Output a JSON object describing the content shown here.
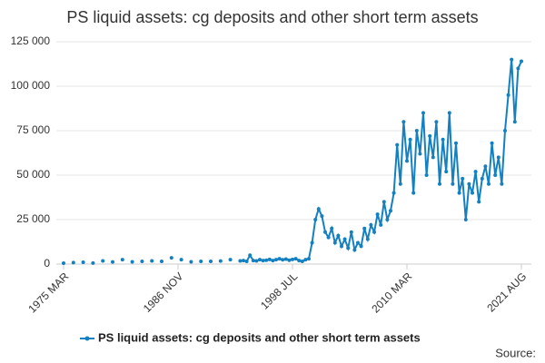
{
  "chart_data": {
    "type": "line",
    "title": "PS liquid assets: cg deposits and other short term assets",
    "source": "Source:",
    "categories": [
      "1975 MAR",
      null,
      null,
      null,
      null,
      null,
      null,
      null,
      null,
      null,
      null,
      null,
      null,
      null,
      null,
      null,
      null,
      null,
      null,
      null,
      null,
      null,
      null,
      null,
      null,
      null,
      null,
      null,
      null,
      null,
      null,
      null,
      null,
      null,
      null,
      "1986 NOV",
      null,
      null,
      null,
      null,
      null,
      null,
      null,
      null,
      null,
      null,
      null,
      null,
      null,
      null,
      null,
      null,
      null,
      null,
      null,
      null,
      null,
      null,
      null,
      null,
      null,
      null,
      null,
      null,
      null,
      null,
      null,
      null,
      null,
      null,
      "1998 JUL",
      null,
      null,
      null,
      null,
      null,
      null,
      null,
      null,
      null,
      null,
      null,
      null,
      null,
      null,
      null,
      null,
      null,
      null,
      null,
      null,
      null,
      null,
      null,
      null,
      null,
      null,
      null,
      null,
      null,
      null,
      null,
      null,
      null,
      null,
      "2010 MAR",
      null,
      null,
      null,
      null,
      null,
      null,
      null,
      null,
      null,
      null,
      null,
      null,
      null,
      null,
      null,
      null,
      null,
      null,
      null,
      null,
      null,
      null,
      null,
      null,
      null,
      null,
      null,
      null,
      null,
      null,
      null,
      null,
      null,
      null,
      "2021 AUG"
    ],
    "series": [
      {
        "name": "PS liquid assets: cg deposits and other short term assets",
        "color": "#1380c2",
        "values": [
          500,
          null,
          null,
          800,
          null,
          null,
          1000,
          null,
          null,
          600,
          null,
          null,
          1800,
          null,
          null,
          1200,
          null,
          null,
          2500,
          null,
          null,
          1300,
          null,
          null,
          1500,
          null,
          null,
          1800,
          null,
          null,
          1500,
          null,
          null,
          3500,
          null,
          null,
          2500,
          null,
          null,
          1300,
          null,
          null,
          1500,
          null,
          null,
          1500,
          null,
          null,
          1700,
          null,
          null,
          2500,
          null,
          null,
          1800,
          2000,
          1500,
          5000,
          2000,
          1800,
          2500,
          2000,
          2200,
          2600,
          2000,
          2500,
          3000,
          2400,
          2800,
          2200,
          2600,
          3000,
          2000,
          1500,
          2500,
          3000,
          12000,
          25000,
          31000,
          27000,
          18000,
          15000,
          20000,
          12000,
          16000,
          10000,
          14000,
          9000,
          18000,
          8000,
          12000,
          10000,
          20000,
          14000,
          22000,
          18000,
          28000,
          22000,
          35000,
          25000,
          30000,
          40000,
          67000,
          45000,
          80000,
          58000,
          70000,
          40000,
          75000,
          62000,
          85000,
          50000,
          72000,
          60000,
          80000,
          45000,
          70000,
          52000,
          85000,
          45000,
          68000,
          40000,
          48000,
          25000,
          45000,
          40000,
          52000,
          35000,
          48000,
          55000,
          45000,
          68000,
          50000,
          60000,
          45000,
          75000,
          95000,
          115000,
          80000,
          110000,
          114000
        ]
      }
    ],
    "ylim": [
      0,
      125000
    ],
    "yticks": [
      {
        "value": 0,
        "label": "0"
      },
      {
        "value": 25000,
        "label": "25 000"
      },
      {
        "value": 50000,
        "label": "50 000"
      },
      {
        "value": 75000,
        "label": "75 000"
      },
      {
        "value": 100000,
        "label": "100 000"
      },
      {
        "value": 125000,
        "label": "125 000"
      }
    ],
    "grid": true,
    "legend": "bottom"
  }
}
